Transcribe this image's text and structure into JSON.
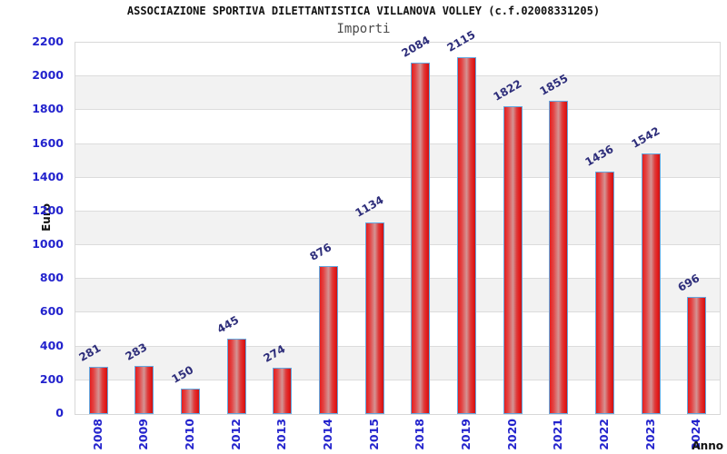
{
  "page": {
    "title": "ASSOCIAZIONE SPORTIVA DILETTANTISTICA VILLANOVA VOLLEY (c.f.02008331205)",
    "subtitle": "Importi"
  },
  "chart_data": {
    "type": "bar",
    "title": "ASSOCIAZIONE SPORTIVA DILETTANTISTICA VILLANOVA VOLLEY (c.f.02008331205)",
    "subtitle": "Importi",
    "categories": [
      "2008",
      "2009",
      "2010",
      "2012",
      "2013",
      "2014",
      "2015",
      "2018",
      "2019",
      "2020",
      "2021",
      "2022",
      "2023",
      "2024"
    ],
    "values": [
      281,
      283,
      150,
      445,
      274,
      876,
      1134,
      2084,
      2115,
      1822,
      1855,
      1436,
      1542,
      696
    ],
    "xlabel": "Anno",
    "ylabel": "Euro",
    "ylim": [
      0,
      2200
    ],
    "ytick_step": 200,
    "grid": true,
    "legend": false,
    "colors": {
      "bar_fill_main": "#e41e1e",
      "bar_fill_light": "#d49494",
      "bar_fill_dark": "#c81414",
      "bar_border": "#64a8e0",
      "tick_label": "#2323cd",
      "value_label": "#2d2d7a",
      "band_gray": "#f2f2f2",
      "grid_line": "#dcdcdc",
      "title_color": "#111111",
      "subtitle_color": "#4a4a4a"
    }
  }
}
